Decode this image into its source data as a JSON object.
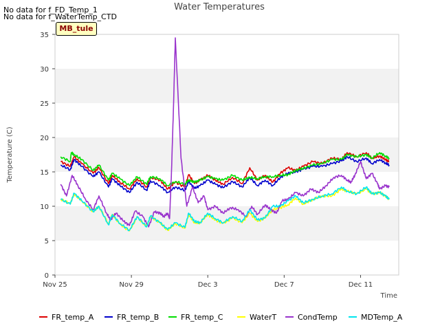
{
  "nodata_lines": [
    "No data for f_FD_Temp_1",
    "No data for f_WaterTemp_CTD"
  ],
  "tag_label": "MB_tule",
  "chart_data": {
    "type": "line",
    "title": "Water Temperatures",
    "xlabel": "Time",
    "ylabel": "Temperature (C)",
    "xlim": [
      0,
      18
    ],
    "ylim": [
      0,
      35
    ],
    "yticks": [
      0,
      5,
      10,
      15,
      20,
      25,
      30,
      35
    ],
    "xticks": [
      {
        "label": "Nov 25",
        "x": 0
      },
      {
        "label": "Nov 29",
        "x": 4
      },
      {
        "label": "Dec 3",
        "x": 8
      },
      {
        "label": "Dec 7",
        "x": 12
      },
      {
        "label": "Dec 11",
        "x": 16
      }
    ],
    "grid": "horizontal bands",
    "legend_position": "bottom",
    "x_note": "x values are days since Nov 25",
    "series": [
      {
        "name": "FR_temp_A",
        "color": "#dd0000",
        "x": [
          0.3,
          0.8,
          1.0,
          1.4,
          2.0,
          2.3,
          2.8,
          3.0,
          3.4,
          3.9,
          4.3,
          4.8,
          5.0,
          5.5,
          5.9,
          6.3,
          6.8,
          7.0,
          7.3,
          7.6,
          8.0,
          8.4,
          8.8,
          9.3,
          9.8,
          10.2,
          10.6,
          11.0,
          11.4,
          11.8,
          12.2,
          12.6,
          13.0,
          13.5,
          14.0,
          14.5,
          15.0,
          15.3,
          15.8,
          16.3,
          16.6,
          17.0,
          17.3,
          17.5
        ],
        "y": [
          16.5,
          15.8,
          17.2,
          16.2,
          14.8,
          15.6,
          13.3,
          14.5,
          13.5,
          12.5,
          14.0,
          12.8,
          14.2,
          13.8,
          12.5,
          13.5,
          12.8,
          14.6,
          13.3,
          13.8,
          14.5,
          13.8,
          13.2,
          14.2,
          13.3,
          15.6,
          13.8,
          14.5,
          13.5,
          14.8,
          15.6,
          15.2,
          15.8,
          16.5,
          16.2,
          17.0,
          16.8,
          17.8,
          17.2,
          17.8,
          17.0,
          17.3,
          16.8,
          16.5
        ]
      },
      {
        "name": "FR_temp_B",
        "color": "#0000cc",
        "x": [
          0.3,
          0.8,
          1.0,
          1.4,
          2.0,
          2.3,
          2.8,
          3.0,
          3.4,
          3.9,
          4.3,
          4.8,
          5.0,
          5.5,
          5.9,
          6.3,
          6.8,
          7.0,
          7.3,
          7.6,
          8.0,
          8.4,
          8.8,
          9.3,
          9.8,
          10.2,
          10.6,
          11.0,
          11.4,
          11.8,
          12.2,
          12.6,
          13.0,
          13.5,
          14.0,
          14.5,
          15.0,
          15.3,
          15.8,
          16.3,
          16.6,
          17.0,
          17.3,
          17.5
        ],
        "y": [
          16.0,
          15.3,
          16.8,
          15.8,
          14.3,
          15.0,
          12.8,
          14.0,
          13.0,
          12.0,
          13.5,
          12.3,
          13.7,
          13.0,
          12.0,
          12.8,
          12.3,
          13.6,
          12.6,
          13.0,
          13.8,
          13.2,
          12.7,
          13.6,
          12.8,
          14.2,
          13.0,
          13.8,
          13.0,
          14.2,
          14.8,
          15.0,
          15.4,
          15.8,
          15.8,
          16.2,
          16.6,
          17.2,
          16.5,
          17.0,
          16.2,
          16.8,
          16.3,
          16.0
        ]
      },
      {
        "name": "FR_temp_C",
        "color": "#00dd00",
        "x": [
          0.3,
          0.8,
          0.85,
          1.0,
          1.4,
          2.0,
          2.3,
          2.8,
          3.0,
          3.4,
          3.9,
          4.3,
          4.8,
          5.0,
          5.5,
          5.9,
          6.3,
          6.8,
          7.0,
          7.3,
          7.6,
          8.0,
          8.4,
          8.8,
          9.3,
          9.8,
          10.2,
          10.6,
          11.0,
          11.4,
          11.8,
          12.2,
          12.6,
          13.0,
          13.5,
          14.0,
          14.5,
          15.0,
          15.3,
          15.8,
          16.3,
          16.6,
          17.0,
          17.3,
          17.5
        ],
        "y": [
          17.2,
          16.5,
          17.8,
          17.5,
          16.8,
          15.2,
          16.0,
          13.8,
          14.8,
          14.0,
          13.0,
          14.3,
          13.2,
          14.3,
          14.0,
          13.0,
          13.6,
          13.2,
          13.8,
          13.5,
          13.8,
          14.3,
          14.0,
          13.8,
          14.5,
          13.8,
          14.2,
          14.0,
          14.3,
          14.3,
          14.5,
          14.6,
          15.2,
          15.5,
          16.0,
          16.2,
          16.8,
          16.8,
          17.5,
          17.2,
          17.5,
          17.0,
          17.8,
          17.3,
          17.0
        ]
      },
      {
        "name": "WaterT",
        "color": "#ffff00",
        "x": [
          0.3,
          0.8,
          1.0,
          1.4,
          2.0,
          2.3,
          2.8,
          3.0,
          3.4,
          3.9,
          4.3,
          4.8,
          5.0,
          5.5,
          5.9,
          6.3,
          6.8,
          7.0,
          7.3,
          7.6,
          8.0,
          8.4,
          8.8,
          9.3,
          9.8,
          10.2,
          10.6,
          11.0,
          11.4,
          11.8,
          12.2,
          12.6,
          13.0,
          13.5,
          14.0,
          14.5,
          15.0,
          15.3,
          15.8,
          16.3,
          16.6,
          17.0,
          17.3,
          17.5
        ],
        "y": [
          11.0,
          10.4,
          11.8,
          10.8,
          9.2,
          10.0,
          7.4,
          8.8,
          7.4,
          6.4,
          8.4,
          7.0,
          8.5,
          7.6,
          6.5,
          7.5,
          6.8,
          8.8,
          7.6,
          7.6,
          8.8,
          8.0,
          7.5,
          8.3,
          7.6,
          9.0,
          7.8,
          8.3,
          9.5,
          9.8,
          10.2,
          11.2,
          10.3,
          11.0,
          11.5,
          11.5,
          12.5,
          12.2,
          11.8,
          12.5,
          11.8,
          12.0,
          11.5,
          11.0
        ]
      },
      {
        "name": "CondTemp",
        "color": "#9933cc",
        "x": [
          0.3,
          0.6,
          0.9,
          1.2,
          1.6,
          2.0,
          2.3,
          2.7,
          2.9,
          3.2,
          3.6,
          3.9,
          4.2,
          4.6,
          4.9,
          5.2,
          5.5,
          5.7,
          5.9,
          6.0,
          6.1,
          6.2,
          6.3,
          6.6,
          6.9,
          7.2,
          7.5,
          7.8,
          8.0,
          8.4,
          8.8,
          9.2,
          9.6,
          10.0,
          10.3,
          10.6,
          11.0,
          11.3,
          11.6,
          11.9,
          12.2,
          12.6,
          13.0,
          13.4,
          13.8,
          14.2,
          14.6,
          15.0,
          15.3,
          15.5,
          15.7,
          16.0,
          16.3,
          16.6,
          16.9,
          17.0,
          17.3,
          17.5
        ],
        "y": [
          13.2,
          11.5,
          14.5,
          13.0,
          11.0,
          9.5,
          11.5,
          9.0,
          8.0,
          9.0,
          7.8,
          7.2,
          9.3,
          8.5,
          7.0,
          9.2,
          9.0,
          8.5,
          9.0,
          8.2,
          15.0,
          24.0,
          34.5,
          17.0,
          10.0,
          12.8,
          10.5,
          11.5,
          9.5,
          10.0,
          9.0,
          9.8,
          9.5,
          8.5,
          10.0,
          8.8,
          10.2,
          9.5,
          9.0,
          10.8,
          11.0,
          12.0,
          11.5,
          12.5,
          12.0,
          13.0,
          14.2,
          14.5,
          13.8,
          13.5,
          14.5,
          16.5,
          14.0,
          14.8,
          13.2,
          12.5,
          13.0,
          12.8
        ]
      },
      {
        "name": "MDTemp_A",
        "color": "#00e5ee",
        "x": [
          0.3,
          0.8,
          1.0,
          1.4,
          2.0,
          2.3,
          2.8,
          3.0,
          3.4,
          3.9,
          4.3,
          4.8,
          5.0,
          5.5,
          5.9,
          6.3,
          6.8,
          7.0,
          7.3,
          7.6,
          8.0,
          8.4,
          8.8,
          9.3,
          9.8,
          10.2,
          10.6,
          11.0,
          11.4,
          11.8,
          12.2,
          12.6,
          13.0,
          13.5,
          14.0,
          14.5,
          15.0,
          15.3,
          15.8,
          16.3,
          16.6,
          17.0,
          17.3,
          17.5
        ],
        "y": [
          11.0,
          10.3,
          11.9,
          10.8,
          9.2,
          10.0,
          7.3,
          8.8,
          7.5,
          6.5,
          8.5,
          7.0,
          8.6,
          7.6,
          6.6,
          7.6,
          6.9,
          9.0,
          7.8,
          7.6,
          9.0,
          8.2,
          7.6,
          8.5,
          7.8,
          9.5,
          8.0,
          8.3,
          10.0,
          10.0,
          10.8,
          11.5,
          10.5,
          11.0,
          11.5,
          11.8,
          12.8,
          12.2,
          11.8,
          12.8,
          11.8,
          12.0,
          11.5,
          11.0
        ]
      }
    ]
  }
}
